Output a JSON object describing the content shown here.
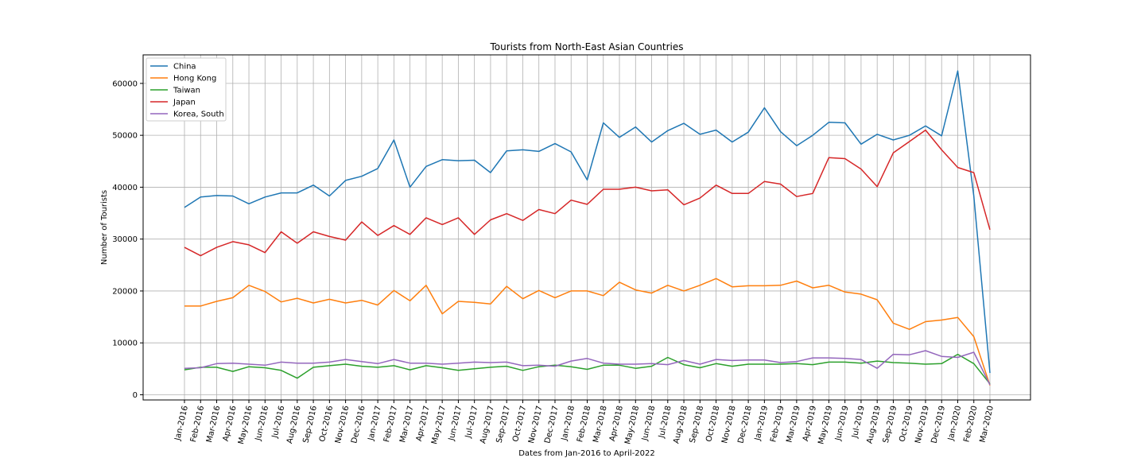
{
  "chart_data": {
    "type": "line",
    "title": "Tourists from North-East Asian Countries",
    "xlabel": "Dates from Jan-2016 to April-2022",
    "ylabel": "Number of Tourists",
    "ylim": [
      -1000,
      65500
    ],
    "yticks": [
      0,
      10000,
      20000,
      30000,
      40000,
      50000,
      60000
    ],
    "grid": true,
    "legend_position": "top-left",
    "categories": [
      "Jan-2016",
      "Feb-2016",
      "Mar-2016",
      "Apr-2016",
      "May-2016",
      "Jun-2016",
      "Jul-2016",
      "Aug-2016",
      "Sep-2016",
      "Oct-2016",
      "Nov-2016",
      "Dec-2016",
      "Jan-2017",
      "Feb-2017",
      "Mar-2017",
      "Apr-2017",
      "May-2017",
      "Jun-2017",
      "Jul-2017",
      "Aug-2017",
      "Sep-2017",
      "Oct-2017",
      "Nov-2017",
      "Dec-2017",
      "Jan-2018",
      "Feb-2018",
      "Mar-2018",
      "Apr-2018",
      "May-2018",
      "Jun-2018",
      "Jul-2018",
      "Aug-2018",
      "Sep-2018",
      "Oct-2018",
      "Nov-2018",
      "Dec-2018",
      "Jan-2019",
      "Feb-2019",
      "Mar-2019",
      "Apr-2019",
      "May-2019",
      "Jun-2019",
      "Jul-2019",
      "Aug-2019",
      "Sep-2019",
      "Oct-2019",
      "Nov-2019",
      "Dec-2019",
      "Jan-2020",
      "Feb-2020",
      "Mar-2020"
    ],
    "series": [
      {
        "name": "China",
        "color": "#1f77b4",
        "values": [
          36100,
          38100,
          38400,
          38300,
          36800,
          38100,
          38900,
          38900,
          40400,
          38300,
          41300,
          42100,
          43600,
          49100,
          40000,
          44000,
          45300,
          45100,
          45200,
          42800,
          47000,
          47200,
          46900,
          48400,
          46800,
          41400,
          52400,
          49600,
          51600,
          48700,
          50900,
          52300,
          50200,
          51000,
          48700,
          50600,
          55300,
          50700,
          48000,
          50000,
          52500,
          52400,
          48300,
          50200,
          49100,
          50000,
          51800,
          49900,
          62400,
          38300,
          4200
        ]
      },
      {
        "name": "Hong Kong",
        "color": "#ff7f0e",
        "values": [
          17100,
          17100,
          18000,
          18700,
          21100,
          19900,
          17900,
          18600,
          17700,
          18400,
          17700,
          18200,
          17300,
          20100,
          18100,
          21100,
          15600,
          18000,
          17800,
          17500,
          20900,
          18500,
          20100,
          18700,
          20000,
          20000,
          19100,
          21700,
          20200,
          19600,
          21100,
          20000,
          21100,
          22400,
          20800,
          21000,
          21000,
          21100,
          21900,
          20600,
          21100,
          19800,
          19400,
          18300,
          13800,
          12600,
          14100,
          14400,
          14900,
          11200,
          1800
        ]
      },
      {
        "name": "Taiwan",
        "color": "#2ca02c",
        "values": [
          4800,
          5300,
          5300,
          4500,
          5400,
          5200,
          4700,
          3200,
          5300,
          5600,
          5900,
          5500,
          5300,
          5600,
          4800,
          5600,
          5200,
          4700,
          5000,
          5300,
          5500,
          4700,
          5400,
          5700,
          5400,
          4900,
          5700,
          5700,
          5100,
          5500,
          7200,
          5800,
          5200,
          6000,
          5500,
          5900,
          5900,
          5900,
          6000,
          5800,
          6300,
          6300,
          6100,
          6500,
          6200,
          6100,
          5900,
          6000,
          7800,
          6000,
          2100
        ]
      },
      {
        "name": "Japan",
        "color": "#d62728",
        "values": [
          28400,
          26800,
          28400,
          29500,
          28900,
          27400,
          31400,
          29200,
          31400,
          30500,
          29800,
          33300,
          30700,
          32600,
          30900,
          34100,
          32800,
          34100,
          30900,
          33700,
          34900,
          33600,
          35700,
          34900,
          37500,
          36700,
          39600,
          39600,
          40000,
          39300,
          39500,
          36600,
          37900,
          40400,
          38800,
          38800,
          41100,
          40600,
          38200,
          38800,
          45700,
          45500,
          43500,
          40100,
          46600,
          48800,
          51000,
          47200,
          43800,
          42800,
          31800
        ]
      },
      {
        "name": "Korea, South",
        "color": "#9467bd",
        "values": [
          5100,
          5200,
          6000,
          6100,
          5900,
          5700,
          6300,
          6100,
          6100,
          6300,
          6800,
          6400,
          6000,
          6800,
          6100,
          6100,
          5900,
          6100,
          6300,
          6200,
          6300,
          5600,
          5700,
          5500,
          6500,
          7000,
          6100,
          5900,
          5900,
          6000,
          5800,
          6600,
          5900,
          6800,
          6600,
          6700,
          6700,
          6200,
          6400,
          7100,
          7100,
          7000,
          6800,
          5100,
          7800,
          7700,
          8500,
          7400,
          7200,
          8200,
          1900
        ]
      }
    ]
  }
}
